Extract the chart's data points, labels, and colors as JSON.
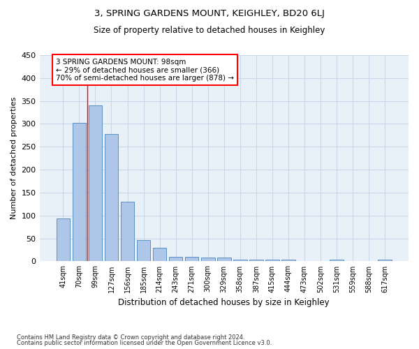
{
  "title1": "3, SPRING GARDENS MOUNT, KEIGHLEY, BD20 6LJ",
  "title2": "Size of property relative to detached houses in Keighley",
  "xlabel": "Distribution of detached houses by size in Keighley",
  "ylabel": "Number of detached properties",
  "footnote1": "Contains HM Land Registry data © Crown copyright and database right 2024.",
  "footnote2": "Contains public sector information licensed under the Open Government Licence v3.0.",
  "categories": [
    "41sqm",
    "70sqm",
    "99sqm",
    "127sqm",
    "156sqm",
    "185sqm",
    "214sqm",
    "243sqm",
    "271sqm",
    "300sqm",
    "329sqm",
    "358sqm",
    "387sqm",
    "415sqm",
    "444sqm",
    "473sqm",
    "502sqm",
    "531sqm",
    "559sqm",
    "588sqm",
    "617sqm"
  ],
  "values": [
    93,
    303,
    341,
    278,
    130,
    46,
    30,
    10,
    10,
    8,
    8,
    4,
    4,
    4,
    3,
    0,
    0,
    4,
    0,
    0,
    4
  ],
  "bar_color": "#aec6e8",
  "bar_edge_color": "#5a8fc0",
  "grid_color": "#c8d8e8",
  "background_color": "#e8f0f8",
  "annotation_text": "3 SPRING GARDENS MOUNT: 98sqm\n← 29% of detached houses are smaller (366)\n70% of semi-detached houses are larger (878) →",
  "annotation_box_color": "white",
  "annotation_box_edge": "red",
  "red_line_bar_index": 1.5,
  "ylim": [
    0,
    450
  ],
  "yticks": [
    0,
    50,
    100,
    150,
    200,
    250,
    300,
    350,
    400,
    450
  ]
}
